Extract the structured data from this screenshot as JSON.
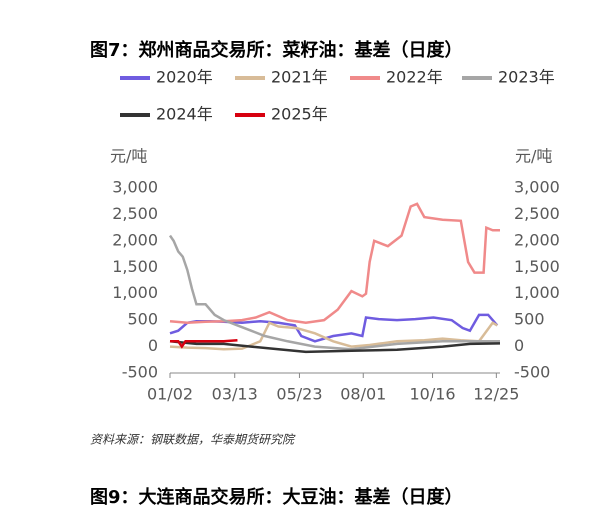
{
  "chart_data": {
    "type": "line",
    "title": "图7：郑州商品交易所：菜籽油：基差（日度）",
    "y_unit": "元/吨",
    "y2_unit": "元/吨",
    "xlim": [
      1,
      363
    ],
    "xticks": [
      {
        "value": 1,
        "label": "01/02"
      },
      {
        "value": 72,
        "label": "03/13"
      },
      {
        "value": 143,
        "label": "05/23"
      },
      {
        "value": 213,
        "label": "08/01"
      },
      {
        "value": 289,
        "label": "10/16"
      },
      {
        "value": 359,
        "label": "12/25"
      }
    ],
    "ylim": [
      -500,
      3000
    ],
    "yticks": [
      -500,
      0,
      500,
      {
        "value": 1000,
        "label": "1,000"
      },
      {
        "value": 1500,
        "label": "1,500"
      },
      {
        "value": 2000,
        "label": "2,000"
      },
      {
        "value": 2500,
        "label": "2,500"
      },
      {
        "value": 3000,
        "label": "3,000"
      }
    ],
    "y2lim": [
      -500,
      3000
    ],
    "y2ticks": [
      -500,
      0,
      500,
      {
        "value": 1000,
        "label": "1,000"
      },
      {
        "value": 1500,
        "label": "1,500"
      },
      {
        "value": 2000,
        "label": "2,000"
      },
      {
        "value": 2500,
        "label": "2,500"
      },
      {
        "value": 3000,
        "label": "3,000"
      }
    ],
    "series": [
      {
        "name": "2020年",
        "color": "#6f5ce0",
        "x": [
          1,
          10,
          20,
          30,
          45,
          60,
          80,
          100,
          120,
          138,
          145,
          160,
          180,
          200,
          212,
          216,
          230,
          250,
          270,
          290,
          310,
          322,
          330,
          340,
          350,
          360
        ],
        "values": [
          250,
          300,
          450,
          480,
          480,
          470,
          450,
          480,
          450,
          400,
          200,
          100,
          200,
          250,
          200,
          550,
          520,
          500,
          520,
          550,
          500,
          350,
          300,
          600,
          600,
          400
        ]
      },
      {
        "name": "2021年",
        "color": "#d8bc98",
        "x": [
          1,
          20,
          40,
          60,
          80,
          100,
          110,
          120,
          140,
          160,
          180,
          200,
          220,
          250,
          280,
          300,
          320,
          340,
          355,
          360
        ],
        "values": [
          0,
          -20,
          -30,
          -50,
          -40,
          100,
          450,
          380,
          350,
          250,
          100,
          0,
          30,
          100,
          120,
          150,
          120,
          100,
          450,
          400
        ]
      },
      {
        "name": "2022年",
        "color": "#f08a8a",
        "x": [
          1,
          20,
          40,
          60,
          80,
          95,
          110,
          130,
          150,
          170,
          185,
          200,
          212,
          216,
          220,
          225,
          240,
          255,
          265,
          272,
          280,
          300,
          320,
          328,
          335,
          345,
          348,
          355,
          363
        ],
        "values": [
          480,
          450,
          470,
          480,
          500,
          550,
          650,
          500,
          450,
          500,
          700,
          1050,
          950,
          1000,
          1600,
          2000,
          1900,
          2100,
          2650,
          2700,
          2450,
          2400,
          2380,
          1600,
          1400,
          1400,
          2250,
          2200,
          2200
        ]
      },
      {
        "name": "2023年",
        "color": "#a6a6a6",
        "x": [
          1,
          5,
          10,
          15,
          20,
          25,
          30,
          40,
          50,
          60,
          75,
          90,
          105,
          130,
          160,
          200,
          250,
          300,
          363
        ],
        "values": [
          2100,
          2000,
          1800,
          1700,
          1450,
          1100,
          800,
          800,
          600,
          500,
          400,
          300,
          200,
          100,
          0,
          -50,
          50,
          100,
          100
        ]
      },
      {
        "name": "2024年",
        "color": "#333333",
        "x": [
          1,
          30,
          60,
          90,
          120,
          150,
          200,
          250,
          300,
          330,
          363
        ],
        "values": [
          100,
          50,
          50,
          0,
          -50,
          -100,
          -80,
          -60,
          0,
          50,
          60
        ]
      },
      {
        "name": "2025年",
        "color": "#d7000f",
        "x": [
          1,
          10,
          14,
          18,
          22,
          40,
          60,
          75
        ],
        "values": [
          100,
          100,
          0,
          100,
          100,
          100,
          100,
          120
        ]
      }
    ]
  },
  "source": "资料来源：钢联数据，华泰期货研究院",
  "next_title": "图9：大连商品交易所：大豆油：基差（日度）"
}
